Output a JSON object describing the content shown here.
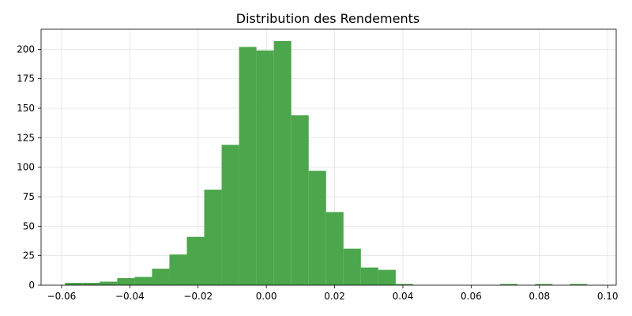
{
  "chart_data": {
    "type": "bar",
    "title": "Distribution des Rendements",
    "xlabel": "",
    "ylabel": "",
    "xlim": [
      -0.066,
      0.1025
    ],
    "ylim": [
      0,
      217
    ],
    "grid": true,
    "bar_color": "#4ca64c",
    "bins": [
      {
        "x0": -0.059,
        "x1": -0.0539,
        "count": 2
      },
      {
        "x0": -0.0539,
        "x1": -0.0488,
        "count": 2
      },
      {
        "x0": -0.0488,
        "x1": -0.0437,
        "count": 3
      },
      {
        "x0": -0.0437,
        "x1": -0.0386,
        "count": 6
      },
      {
        "x0": -0.0386,
        "x1": -0.0335,
        "count": 7
      },
      {
        "x0": -0.0335,
        "x1": -0.0284,
        "count": 14
      },
      {
        "x0": -0.0284,
        "x1": -0.0233,
        "count": 26
      },
      {
        "x0": -0.0233,
        "x1": -0.0182,
        "count": 41
      },
      {
        "x0": -0.0182,
        "x1": -0.0131,
        "count": 81
      },
      {
        "x0": -0.0131,
        "x1": -0.008,
        "count": 119
      },
      {
        "x0": -0.008,
        "x1": -0.0029,
        "count": 202
      },
      {
        "x0": -0.0029,
        "x1": 0.0022,
        "count": 199
      },
      {
        "x0": 0.0022,
        "x1": 0.0073,
        "count": 207
      },
      {
        "x0": 0.0073,
        "x1": 0.0124,
        "count": 144
      },
      {
        "x0": 0.0124,
        "x1": 0.0175,
        "count": 97
      },
      {
        "x0": 0.0175,
        "x1": 0.0226,
        "count": 62
      },
      {
        "x0": 0.0226,
        "x1": 0.0277,
        "count": 31
      },
      {
        "x0": 0.0277,
        "x1": 0.0328,
        "count": 15
      },
      {
        "x0": 0.0328,
        "x1": 0.0379,
        "count": 13
      },
      {
        "x0": 0.0379,
        "x1": 0.043,
        "count": 1
      },
      {
        "x0": 0.043,
        "x1": 0.0481,
        "count": 0
      },
      {
        "x0": 0.0481,
        "x1": 0.0532,
        "count": 0
      },
      {
        "x0": 0.0532,
        "x1": 0.0583,
        "count": 0
      },
      {
        "x0": 0.0583,
        "x1": 0.0634,
        "count": 0
      },
      {
        "x0": 0.0634,
        "x1": 0.0685,
        "count": 0
      },
      {
        "x0": 0.0685,
        "x1": 0.0736,
        "count": 1
      },
      {
        "x0": 0.0736,
        "x1": 0.0787,
        "count": 0
      },
      {
        "x0": 0.0787,
        "x1": 0.0838,
        "count": 1
      },
      {
        "x0": 0.0838,
        "x1": 0.0889,
        "count": 0
      },
      {
        "x0": 0.0889,
        "x1": 0.094,
        "count": 1
      }
    ],
    "x_ticks": [
      {
        "value": -0.06,
        "label": "−0.06"
      },
      {
        "value": -0.04,
        "label": "−0.04"
      },
      {
        "value": -0.02,
        "label": "−0.02"
      },
      {
        "value": 0.0,
        "label": "0.00"
      },
      {
        "value": 0.02,
        "label": "0.02"
      },
      {
        "value": 0.04,
        "label": "0.04"
      },
      {
        "value": 0.06,
        "label": "0.06"
      },
      {
        "value": 0.08,
        "label": "0.08"
      },
      {
        "value": 0.1,
        "label": "0.10"
      }
    ],
    "y_ticks": [
      {
        "value": 0,
        "label": "0"
      },
      {
        "value": 25,
        "label": "25"
      },
      {
        "value": 50,
        "label": "50"
      },
      {
        "value": 75,
        "label": "75"
      },
      {
        "value": 100,
        "label": "100"
      },
      {
        "value": 125,
        "label": "125"
      },
      {
        "value": 150,
        "label": "150"
      },
      {
        "value": 175,
        "label": "175"
      },
      {
        "value": 200,
        "label": "200"
      }
    ]
  }
}
